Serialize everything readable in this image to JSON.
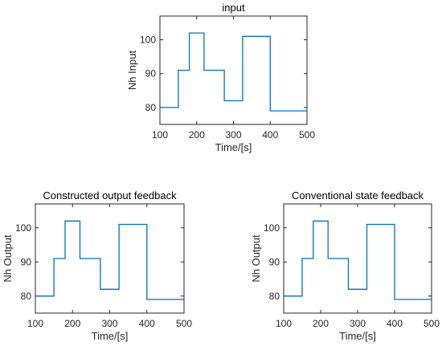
{
  "chart_data": [
    {
      "type": "line",
      "title": "input",
      "xlabel": "Time/[s]",
      "ylabel": "Nh Input",
      "xlim": [
        100,
        500
      ],
      "ylim": [
        75,
        107
      ],
      "xticks": [
        100,
        200,
        300,
        400,
        500
      ],
      "yticks": [
        80,
        90,
        100
      ],
      "grid": false,
      "series": [
        {
          "color": "#0072BD",
          "x": [
            100,
            150,
            150,
            180,
            180,
            220,
            220,
            275,
            275,
            325,
            325,
            400,
            400,
            500
          ],
          "y": [
            80,
            80,
            91,
            91,
            102,
            102,
            91,
            91,
            82,
            82,
            101,
            101,
            79,
            79
          ]
        }
      ]
    },
    {
      "type": "line",
      "title": "Constructed output feedback",
      "xlabel": "Time/[s]",
      "ylabel": "Nh Output",
      "xlim": [
        100,
        500
      ],
      "ylim": [
        75,
        107
      ],
      "xticks": [
        100,
        200,
        300,
        400,
        500
      ],
      "yticks": [
        80,
        90,
        100
      ],
      "grid": false,
      "series": [
        {
          "color": "#0072BD",
          "x": [
            100,
            150,
            150,
            180,
            180,
            220,
            220,
            275,
            275,
            325,
            325,
            400,
            400,
            500
          ],
          "y": [
            80,
            80,
            91,
            91,
            102,
            102,
            91,
            91,
            82,
            82,
            101,
            101,
            79,
            79
          ]
        }
      ]
    },
    {
      "type": "line",
      "title": "Conventional state feedback",
      "xlabel": "Time/[s]",
      "ylabel": "Nh Output",
      "xlim": [
        100,
        500
      ],
      "ylim": [
        75,
        107
      ],
      "xticks": [
        100,
        200,
        300,
        400,
        500
      ],
      "yticks": [
        80,
        90,
        100
      ],
      "grid": false,
      "series": [
        {
          "color": "#0072BD",
          "x": [
            100,
            150,
            150,
            180,
            180,
            220,
            220,
            275,
            275,
            325,
            325,
            400,
            400,
            500
          ],
          "y": [
            80,
            80,
            91,
            91,
            102,
            102,
            91,
            91,
            82,
            82,
            101,
            101,
            79,
            79
          ]
        }
      ]
    }
  ]
}
